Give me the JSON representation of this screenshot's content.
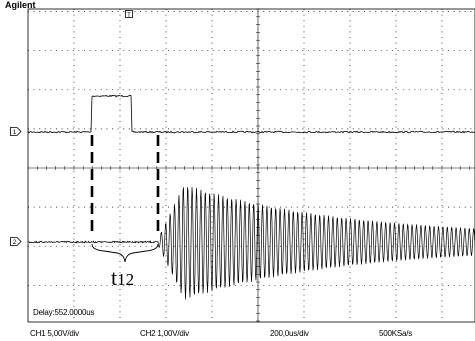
{
  "brand": "Agilent",
  "delay_readout": "Delay:552.0000us",
  "annotation": {
    "main": "t",
    "sub": "12"
  },
  "channels": [
    {
      "id": "ch1",
      "marker": "1",
      "scale": "CH1 5,00V/div"
    },
    {
      "id": "ch2",
      "marker": "2",
      "scale": "CH2 1,00V/div"
    }
  ],
  "trigger_marker": "T",
  "timebase": "200,0us/div",
  "sample_rate": "500KSa/s",
  "colors": {
    "trace": "#000000",
    "grid": "#000000",
    "background": "#ffffff"
  }
}
